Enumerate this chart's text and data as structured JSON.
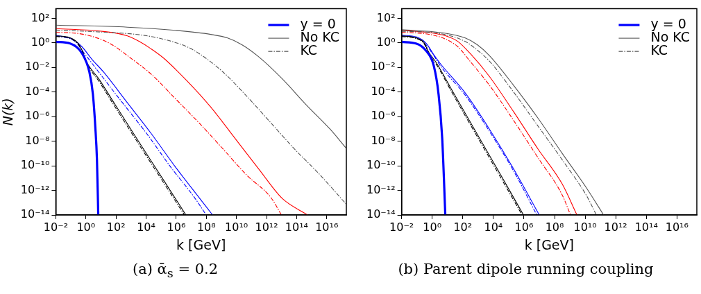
{
  "chart_data": [
    {
      "type": "line",
      "title": "(a) ᾱ$_{s}$ = 0.2",
      "xlabel": "k [GeV]",
      "ylabel": "N(k)",
      "log": "xy",
      "grid": false,
      "legend": "top right",
      "marker": "none",
      "xlim": [
        0.01,
        2e+17
      ],
      "ylim": [
        1e-14,
        600
      ],
      "xticks": [
        {
          "value": 0.01,
          "label": "10⁻²"
        },
        {
          "value": 1,
          "label": "10⁰"
        },
        {
          "value": 100,
          "label": "10²"
        },
        {
          "value": 10000.0,
          "label": "10⁴"
        },
        {
          "value": 1000000.0,
          "label": "10⁶"
        },
        {
          "value": 100000000.0,
          "label": "10⁸"
        },
        {
          "value": 10000000000.0,
          "label": "10¹⁰"
        },
        {
          "value": 1000000000000.0,
          "label": "10¹²"
        },
        {
          "value": 100000000000000.0,
          "label": "10¹⁴"
        },
        {
          "value": 1e+16,
          "label": "10¹⁶"
        }
      ],
      "yticks": [
        {
          "value": 1e-14,
          "label": "10⁻¹⁴"
        },
        {
          "value": 1e-12,
          "label": "10⁻¹²"
        },
        {
          "value": 1e-10,
          "label": "10⁻¹⁰"
        },
        {
          "value": 1e-08,
          "label": "10⁻⁸"
        },
        {
          "value": 1e-06,
          "label": "10⁻⁶"
        },
        {
          "value": 0.0001,
          "label": "10⁻⁴"
        },
        {
          "value": 0.01,
          "label": "10⁻²"
        },
        {
          "value": 1,
          "label": "10⁰"
        },
        {
          "value": 100,
          "label": "10²"
        }
      ],
      "series": [
        {
          "name": "y = 0",
          "color": "#0000ff",
          "line_style": "solid",
          "x": [
            0.01,
            0.09,
            0.55,
            1.7,
            2.9,
            4.2,
            5.4,
            6.6
          ],
          "values": [
            1.2,
            0.89,
            0.14,
            0.0042,
            6.8e-05,
            1.4e-07,
            3.2e-10,
            1e-14
          ]
        },
        {
          "name": "No KC",
          "color": "#555555",
          "line_style": "solid",
          "x": [
            0.01,
            575,
            850000.0,
            200000000.0,
            2600000000.0,
            23000000000.0,
            300000000000.0,
            11000000000000.0,
            450000000000000.0,
            1.7e+16,
            1.9e+17
          ],
          "values": [
            28,
            19,
            10.5,
            4.9,
            2.5,
            0.71,
            0.074,
            0.0012,
            8.7e-06,
            9.3e-08,
            2.8e-09
          ]
        },
        {
          "name": "KC",
          "color": "#555555",
          "line_style": "dashed",
          "x": [
            0.01,
            15,
            3500.0,
            140000.0,
            5200000.0,
            32000000.0,
            1300000000.0,
            49000000000.0,
            1900000000000.0,
            72000000000000.0,
            2800000000000000.0,
            1.9e+17
          ],
          "values": [
            11,
            7.4,
            4.6,
            2.0,
            0.48,
            0.14,
            0.0042,
            4.5e-05,
            3.2e-07,
            2.3e-09,
            2.5e-11,
            7.9e-14
          ]
        },
        {
          "color": "#000000",
          "line_style": "solid",
          "x": [
            0.01,
            0.062,
            0.27,
            0.55,
            1.15,
            7.1,
            91,
            3500.0,
            140000.0,
            4400000.0
          ],
          "values": [
            3.7,
            3.0,
            1.07,
            0.26,
            0.026,
            0.0012,
            8.7e-06,
            7.9e-09,
            7.2e-12,
            1e-14
          ]
        },
        {
          "color": "#000000",
          "line_style": "dashed",
          "x": [
            0.01,
            0.062,
            0.27,
            0.55,
            1.15,
            7.1,
            91,
            3500.0,
            140000.0,
            3500000.0
          ],
          "values": [
            3.3,
            2.7,
            0.9,
            0.21,
            0.02,
            0.0008,
            5.5e-06,
            5e-09,
            4.5e-12,
            1e-14
          ]
        },
        {
          "color": "#0000ff",
          "line_style": "solid",
          "x": [
            0.01,
            0.13,
            0.55,
            2.4,
            15,
            575,
            22000.0,
            850000.0,
            32000000.0,
            260000000.0
          ],
          "values": [
            4.2,
            2.0,
            0.48,
            0.049,
            0.0042,
            1.3e-05,
            4.1e-08,
            8.5e-11,
            2.7e-13,
            1e-14
          ]
        },
        {
          "color": "#0000ff",
          "line_style": "dashed",
          "x": [
            0.01,
            0.19,
            0.79,
            7.1,
            275,
            11000.0,
            410000.0,
            16000000.0,
            98000000.0
          ],
          "values": [
            3.7,
            1.3,
            0.14,
            0.0042,
            1.3e-05,
            4.1e-08,
            8.5e-11,
            2.7e-13,
            1e-14
          ]
        },
        {
          "color": "#ff0000",
          "line_style": "solid",
          "x": [
            0.01,
            15,
            575,
            3500.0,
            22000.0,
            140000.0,
            5200000.0,
            200000000.0,
            7800000000.0,
            300000000000.0,
            11000000000000.0,
            540000000000000.0
          ],
          "values": [
            14.5,
            8.5,
            3.7,
            1.3,
            0.32,
            0.06,
            0.00081,
            5.8e-06,
            1.8e-08,
            5.6e-11,
            2.2e-13,
            1e-14
          ]
        },
        {
          "color": "#ff0000",
          "line_style": "dashed",
          "x": [
            0.01,
            0.39,
            3.5,
            15,
            91,
            575,
            22000.0,
            850000.0,
            32000000.0,
            1300000000.0,
            49000000000.0,
            1900000000000.0,
            9800000000000.0
          ],
          "values": [
            7.4,
            5.6,
            3.0,
            1.6,
            0.48,
            0.091,
            0.0028,
            3e-05,
            3.2e-07,
            2.3e-09,
            1.7e-11,
            2.7e-13,
            1e-14
          ]
        }
      ]
    },
    {
      "type": "line",
      "title": "(b) Parent dipole running coupling",
      "xlabel": "k [GeV]",
      "log": "xy",
      "grid": false,
      "legend": "top right",
      "marker": "none",
      "xlim": [
        0.01,
        2e+17
      ],
      "ylim": [
        1e-14,
        600
      ],
      "xticks": [
        {
          "value": 0.01,
          "label": "10⁻²"
        },
        {
          "value": 1,
          "label": "10⁰"
        },
        {
          "value": 100,
          "label": "10²"
        },
        {
          "value": 10000.0,
          "label": "10⁴"
        },
        {
          "value": 1000000.0,
          "label": "10⁶"
        },
        {
          "value": 100000000.0,
          "label": "10⁸"
        },
        {
          "value": 10000000000.0,
          "label": "10¹⁰"
        },
        {
          "value": 1000000000000.0,
          "label": "10¹²"
        },
        {
          "value": 100000000000000.0,
          "label": "10¹⁴"
        },
        {
          "value": 1e+16,
          "label": "10¹⁶"
        }
      ],
      "yticks": [
        {
          "value": 1e-14,
          "label": "10⁻¹⁴"
        },
        {
          "value": 1e-12,
          "label": "10⁻¹²"
        },
        {
          "value": 1e-10,
          "label": "10⁻¹⁰"
        },
        {
          "value": 1e-08,
          "label": "10⁻⁸"
        },
        {
          "value": 1e-06,
          "label": "10⁻⁶"
        },
        {
          "value": 0.0001,
          "label": "10⁻⁴"
        },
        {
          "value": 0.01,
          "label": "10⁻²"
        },
        {
          "value": 1,
          "label": "10⁰"
        },
        {
          "value": 100,
          "label": "10²"
        }
      ],
      "series": [
        {
          "name": "y = 0",
          "color": "#0000ff",
          "line_style": "solid",
          "x": [
            0.01,
            0.095,
            0.42,
            1.26,
            2.6,
            4.5,
            7.2
          ],
          "values": [
            1.2,
            0.87,
            0.21,
            0.014,
            6.8e-05,
            1.8e-08,
            1e-14
          ]
        },
        {
          "name": "No KC",
          "color": "#555555",
          "line_style": "solid",
          "x": [
            0.01,
            3.7,
            145,
            890,
            5600.0,
            210000.0,
            8300000.0,
            320000000.0,
            13000000000.0,
            160000000000.0
          ],
          "values": [
            11.7,
            6.9,
            2.5,
            0.71,
            0.091,
            0.00035,
            7.4e-07,
            1e-09,
            1.4e-12,
            1e-14
          ]
        },
        {
          "name": "KC",
          "color": "#555555",
          "line_style": "dashed",
          "x": [
            0.01,
            3.7,
            145,
            890,
            5600.0,
            210000.0,
            8300000.0,
            320000000.0,
            13000000000.0,
            54000000000.0
          ],
          "values": [
            9.1,
            5.6,
            1.3,
            0.26,
            0.032,
            0.0001,
            1.7e-07,
            3e-10,
            3.3e-13,
            1e-14
          ]
        },
        {
          "color": "#000000",
          "line_style": "solid",
          "x": [
            0.01,
            0.095,
            0.29,
            0.6,
            1.8,
            23,
            890,
            35000.0,
            930000.0
          ],
          "values": [
            3.7,
            2.5,
            1.07,
            0.17,
            0.026,
            0.0001,
            3.6e-08,
            1.3e-11,
            1e-14
          ]
        },
        {
          "color": "#000000",
          "line_style": "dashed",
          "x": [
            0.01,
            0.095,
            0.29,
            0.6,
            1.8,
            23,
            890,
            35000.0,
            750000.0
          ],
          "values": [
            3.3,
            2.2,
            0.9,
            0.13,
            0.019,
            6.5e-05,
            2.3e-08,
            8e-12,
            1e-14
          ]
        },
        {
          "color": "#0000ff",
          "line_style": "solid",
          "x": [
            0.01,
            0.095,
            0.42,
            1.26,
            3.7,
            145,
            5600.0,
            210000.0,
            10000000.0
          ],
          "values": [
            4.2,
            3.0,
            0.87,
            0.11,
            0.018,
            8.3e-05,
            9.3e-08,
            5.6e-11,
            1e-14
          ]
        },
        {
          "color": "#0000ff",
          "line_style": "dashed",
          "x": [
            0.01,
            0.095,
            0.42,
            1.26,
            3.7,
            145,
            5600.0,
            210000.0,
            6900000.0
          ],
          "values": [
            3.7,
            2.5,
            0.63,
            0.091,
            0.012,
            5.5e-05,
            6.2e-08,
            3.8e-11,
            1e-14
          ]
        },
        {
          "color": "#ff0000",
          "line_style": "solid",
          "x": [
            0.01,
            0.6,
            7.8,
            48,
            300,
            5600.0,
            210000.0,
            8300000.0,
            320000000.0,
            2900000000.0
          ],
          "values": [
            10.5,
            6.9,
            3.7,
            1.3,
            0.14,
            0.0018,
            2.5e-06,
            2.3e-09,
            3.2e-12,
            1e-14
          ]
        },
        {
          "color": "#ff0000",
          "line_style": "dashed",
          "x": [
            0.01,
            0.6,
            7.8,
            48,
            300,
            5600.0,
            210000.0,
            8300000.0,
            320000000.0,
            1100000000.0
          ],
          "values": [
            7.4,
            5.0,
            2.0,
            0.48,
            0.032,
            0.00035,
            4.9e-07,
            4.5e-10,
            4.1e-13,
            1e-14
          ]
        }
      ]
    }
  ]
}
